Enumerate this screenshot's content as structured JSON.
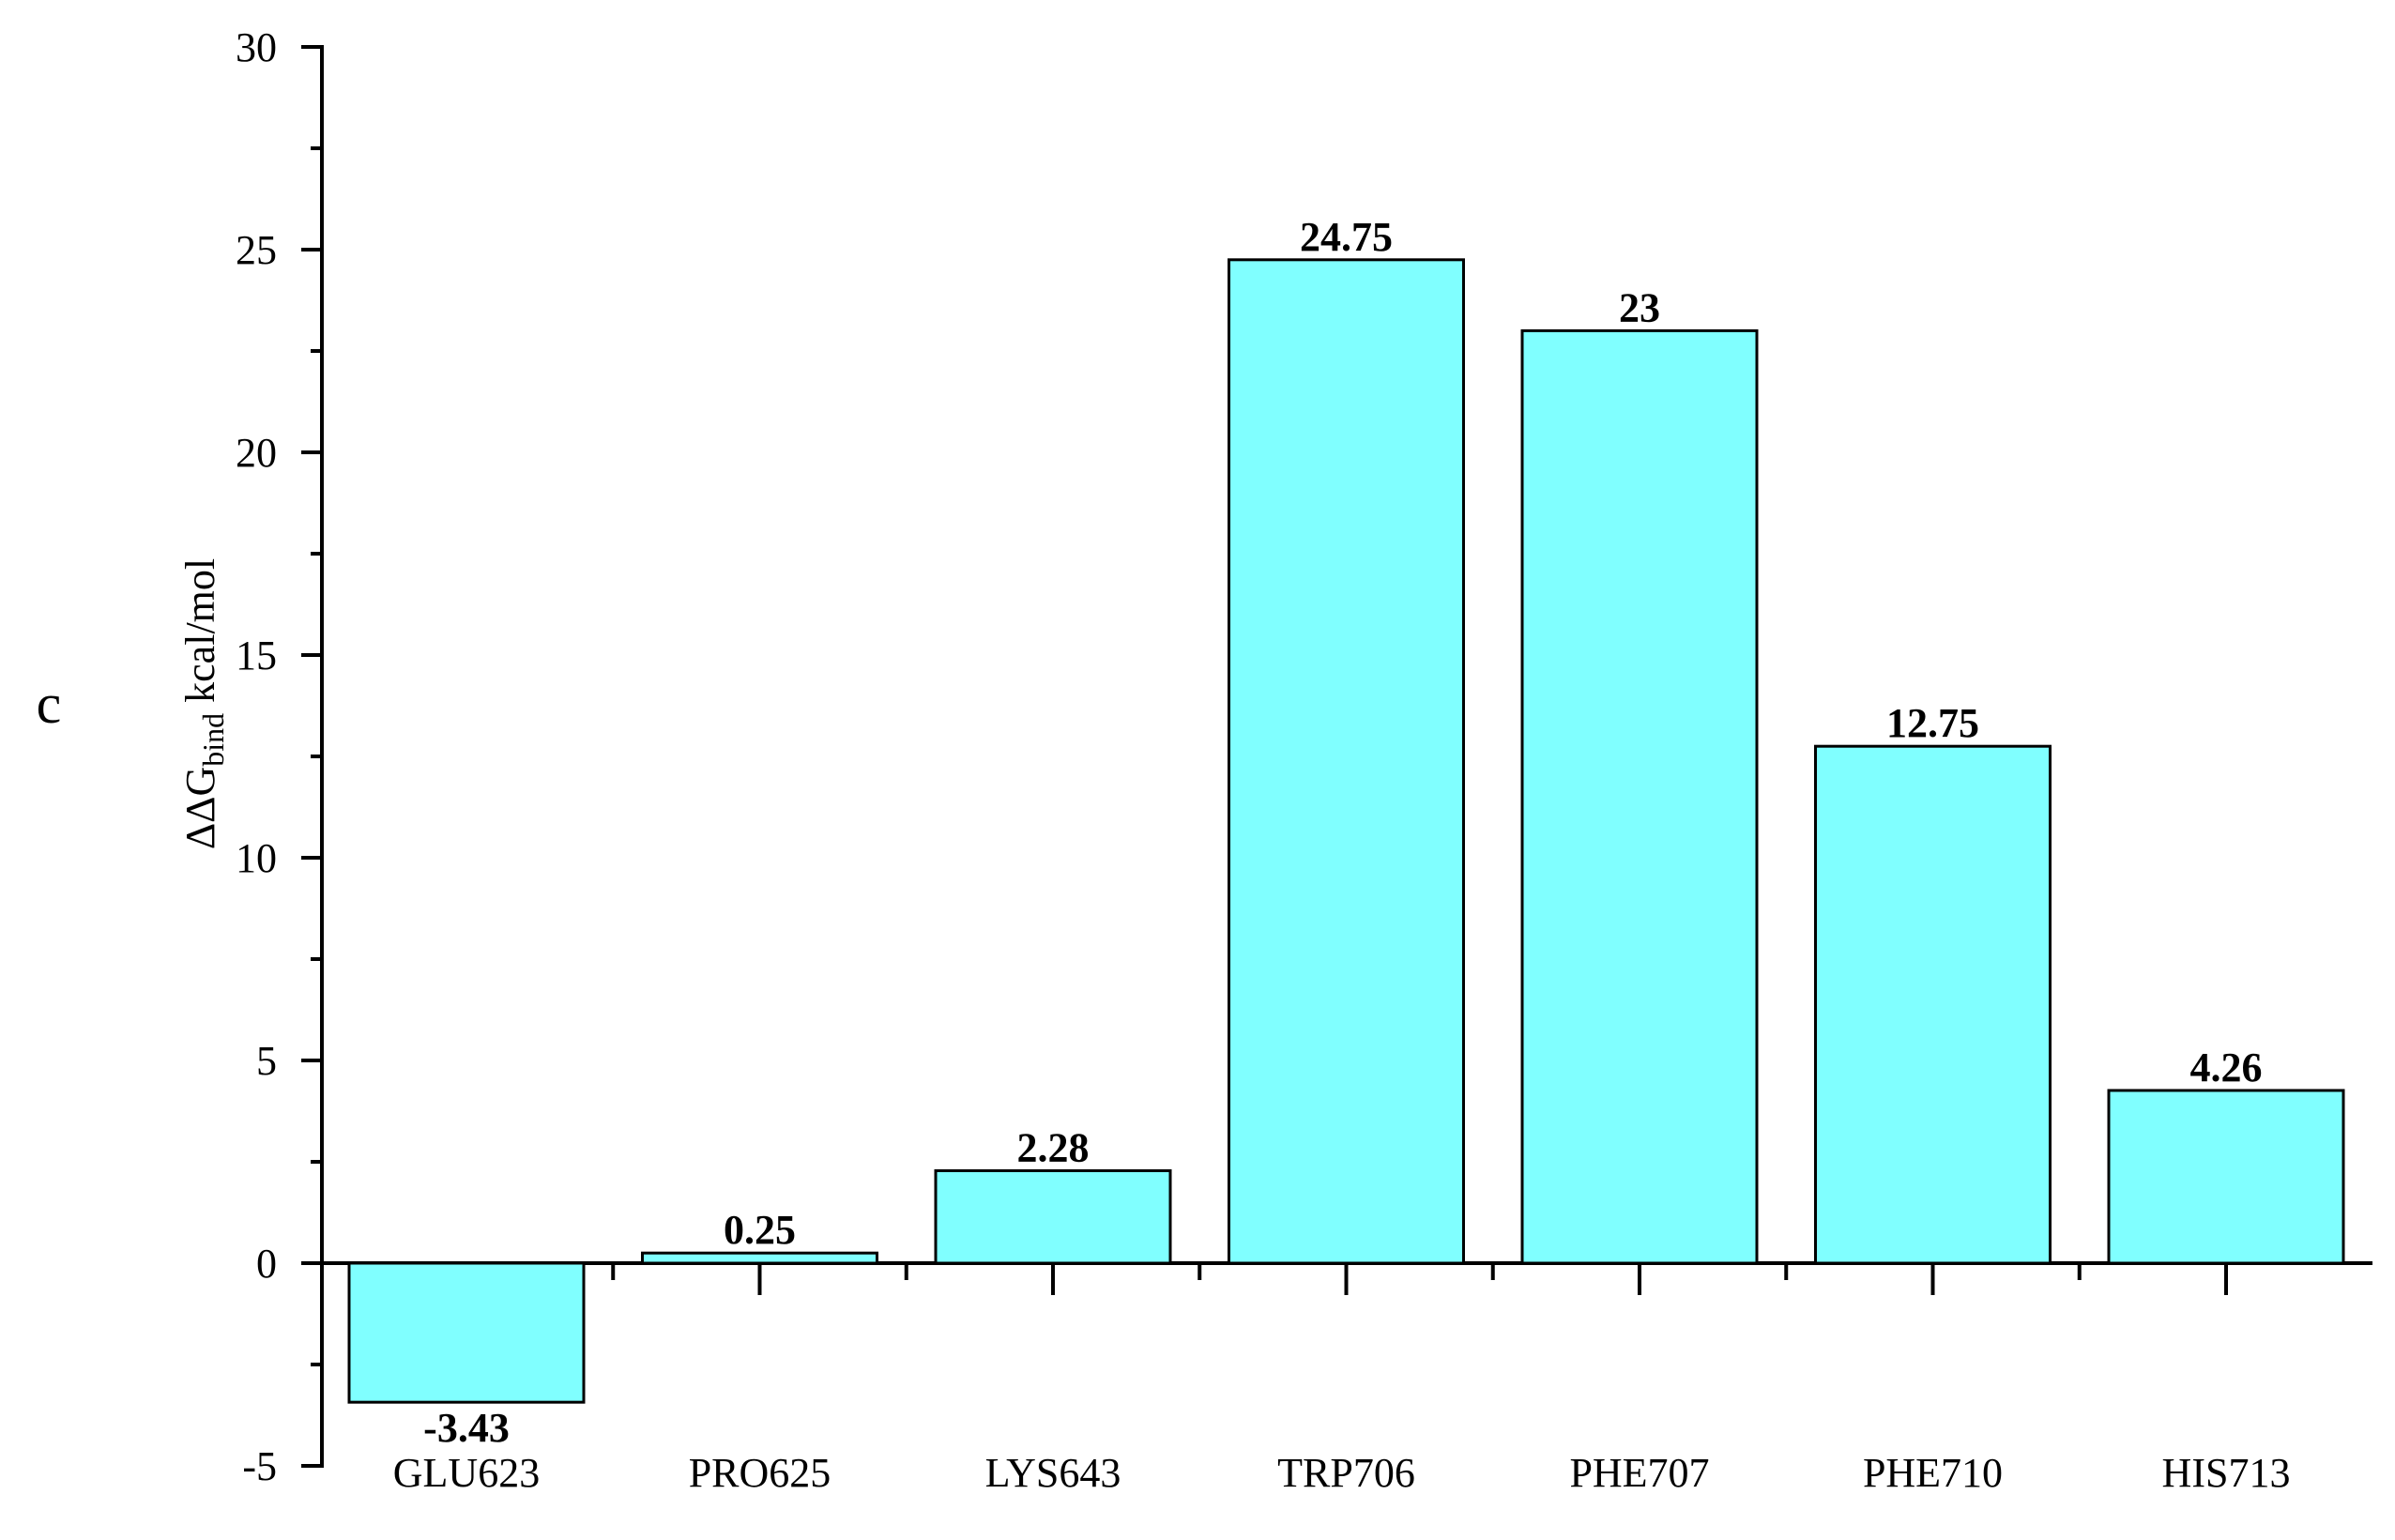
{
  "panel_label": "c",
  "chart_data": {
    "type": "bar",
    "title": "",
    "xlabel": "",
    "ylabel": {
      "main": "ΔΔG",
      "subscript": "bind",
      "unit": " kcal/mol"
    },
    "ylim": [
      -5,
      30
    ],
    "yticks": [
      -5,
      0,
      5,
      10,
      15,
      20,
      25,
      30
    ],
    "categories": [
      "GLU623",
      "PRO625",
      "LYS643",
      "TRP706",
      "PHE707",
      "PHE710",
      "HIS713"
    ],
    "values": [
      -3.43,
      0.25,
      2.28,
      24.75,
      23,
      12.75,
      4.26
    ],
    "data_labels": [
      "-3.43",
      "0.25",
      "2.28",
      "24.75",
      "23",
      "12.75",
      "4.26"
    ],
    "bar_color": "#80FFFF",
    "bar_edge_color": "#000000",
    "grid": false,
    "legend": "none"
  }
}
